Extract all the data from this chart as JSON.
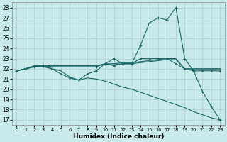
{
  "xlabel": "Humidex (Indice chaleur)",
  "bg_color": "#c8eaea",
  "grid_color": "#aacccc",
  "line_color": "#1a6666",
  "xlim": [
    -0.5,
    23.5
  ],
  "ylim": [
    16.5,
    28.5
  ],
  "yticks": [
    17,
    18,
    19,
    20,
    21,
    22,
    23,
    24,
    25,
    26,
    27,
    28
  ],
  "xticks": [
    0,
    1,
    2,
    3,
    4,
    5,
    6,
    7,
    8,
    9,
    10,
    11,
    12,
    13,
    14,
    15,
    16,
    17,
    18,
    19,
    20,
    21,
    22,
    23
  ],
  "line_peak_x": [
    0,
    1,
    2,
    3,
    4,
    9,
    10,
    11,
    12,
    13,
    14,
    15,
    16,
    17,
    18,
    19,
    20,
    21,
    22,
    23
  ],
  "line_peak_y": [
    21.8,
    22.0,
    22.2,
    22.3,
    22.2,
    22.2,
    22.5,
    23.0,
    22.5,
    22.5,
    24.3,
    26.5,
    27.0,
    26.8,
    28.0,
    23.0,
    21.8,
    19.8,
    18.3,
    17.0
  ],
  "line_flat_x": [
    0,
    1,
    2,
    3,
    4,
    5,
    6,
    7,
    8,
    9,
    10,
    11,
    12,
    13,
    14,
    15,
    16,
    17,
    18,
    19,
    20,
    21,
    22,
    23
  ],
  "line_flat_y": [
    21.8,
    22.0,
    22.3,
    22.3,
    22.3,
    22.3,
    22.3,
    22.3,
    22.3,
    22.3,
    22.5,
    22.5,
    22.6,
    22.6,
    22.7,
    22.8,
    22.9,
    23.0,
    23.0,
    22.0,
    22.0,
    22.0,
    22.0,
    22.0
  ],
  "line_flat2_x": [
    0,
    1,
    2,
    3,
    4,
    5,
    6,
    7,
    8,
    9,
    10,
    11,
    12,
    13,
    14,
    15,
    16,
    17,
    18,
    19,
    20,
    21,
    22,
    23
  ],
  "line_flat2_y": [
    21.8,
    22.0,
    22.3,
    22.3,
    22.3,
    22.3,
    22.3,
    22.3,
    22.3,
    22.3,
    22.4,
    22.4,
    22.5,
    22.5,
    22.6,
    22.7,
    22.8,
    22.9,
    22.9,
    22.0,
    22.0,
    22.0,
    22.0,
    22.0
  ],
  "line_down_x": [
    0,
    1,
    2,
    3,
    4,
    5,
    6,
    7,
    8,
    9,
    10,
    11,
    12,
    13,
    14,
    15,
    16,
    17,
    18,
    19,
    20,
    21,
    22,
    23
  ],
  "line_down_y": [
    21.8,
    22.0,
    22.2,
    22.2,
    22.0,
    21.8,
    21.2,
    20.9,
    21.1,
    21.0,
    20.8,
    20.5,
    20.2,
    20.0,
    19.7,
    19.4,
    19.1,
    18.8,
    18.5,
    18.2,
    17.8,
    17.5,
    17.2,
    17.0
  ],
  "line_zigzag_x": [
    0,
    1,
    2,
    3,
    4,
    5,
    6,
    7,
    8,
    9,
    10,
    11,
    12,
    13,
    14,
    15,
    16,
    17,
    18,
    19,
    20,
    21,
    22,
    23
  ],
  "line_zigzag_y": [
    21.8,
    22.0,
    22.2,
    22.3,
    22.0,
    21.5,
    21.1,
    20.9,
    21.5,
    21.8,
    22.5,
    22.3,
    22.5,
    22.5,
    23.0,
    23.0,
    23.0,
    23.0,
    22.5,
    22.0,
    21.8,
    21.8,
    21.8,
    21.8
  ]
}
